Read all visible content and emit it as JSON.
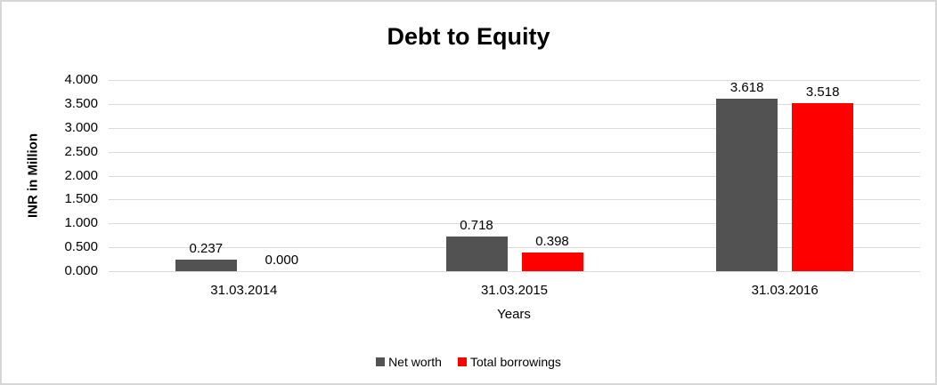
{
  "chart_data": {
    "type": "bar",
    "title": "Debt to Equity",
    "xlabel": "Years",
    "ylabel": "INR in Million",
    "categories": [
      "31.03.2014",
      "31.03.2015",
      "31.03.2016"
    ],
    "series": [
      {
        "name": "Net worth",
        "color": "#525252",
        "values": [
          0.237,
          0.718,
          3.618
        ],
        "data_labels": [
          "0.237",
          "0.718",
          "3.618"
        ]
      },
      {
        "name": "Total borrowings",
        "color": "#ff0000",
        "values": [
          0.0,
          0.398,
          3.518
        ],
        "data_labels": [
          "0.000",
          "0.398",
          "3.518"
        ]
      }
    ],
    "ylim": [
      0,
      4
    ],
    "ytick_step": 0.5,
    "yticks": [
      "0.000",
      "0.500",
      "1.000",
      "1.500",
      "2.000",
      "2.500",
      "3.000",
      "3.500",
      "4.000"
    ],
    "grid": true,
    "legend_position": "bottom",
    "colors": {
      "gridline": "#d9d9d9",
      "axis_line": "#d9d9d9",
      "text": "#000000",
      "frame_border": "#d6d6d6",
      "background": "#ffffff"
    }
  }
}
